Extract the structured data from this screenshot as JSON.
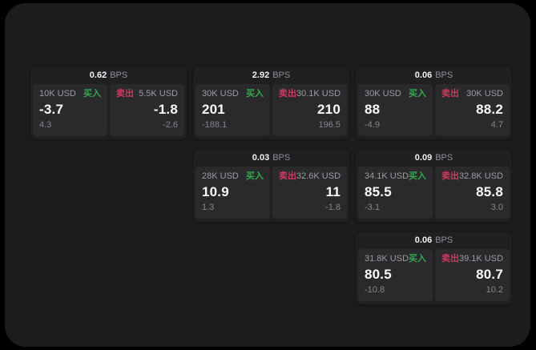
{
  "labels": {
    "buy": "买入",
    "sell": "卖出",
    "bps_unit": "BPS"
  },
  "colors": {
    "buy_green": "#32a94f",
    "sell_red": "#cd3a5e",
    "panel_bg": "#1c1c1e",
    "card_bg": "#202022",
    "pane_bg": "#2a2a2c"
  },
  "cards": [
    {
      "bps": "0.62",
      "buy": {
        "size": "10K USD",
        "value": "-3.7",
        "delta": "4.3"
      },
      "sell": {
        "size": "5.5K USD",
        "value": "-1.8",
        "delta": "-2.6"
      }
    },
    {
      "bps": "2.92",
      "buy": {
        "size": "30K USD",
        "value": "201",
        "delta": "-188.1"
      },
      "sell": {
        "size": "30.1K USD",
        "value": "210",
        "delta": "196.5"
      }
    },
    {
      "bps": "0.06",
      "buy": {
        "size": "30K USD",
        "value": "88",
        "delta": "-4.9"
      },
      "sell": {
        "size": "30K USD",
        "value": "88.2",
        "delta": "4.7"
      }
    },
    {
      "bps": "0.03",
      "buy": {
        "size": "28K USD",
        "value": "10.9",
        "delta": "1.3"
      },
      "sell": {
        "size": "32.6K USD",
        "value": "11",
        "delta": "-1.8"
      }
    },
    {
      "bps": "0.09",
      "buy": {
        "size": "34.1K USD",
        "value": "85.5",
        "delta": "-3.1"
      },
      "sell": {
        "size": "32.8K USD",
        "value": "85.8",
        "delta": "3.0"
      }
    },
    {
      "bps": "0.06",
      "buy": {
        "size": "31.8K USD",
        "value": "80.5",
        "delta": "-10.8"
      },
      "sell": {
        "size": "39.1K USD",
        "value": "80.7",
        "delta": "10.2"
      }
    }
  ]
}
